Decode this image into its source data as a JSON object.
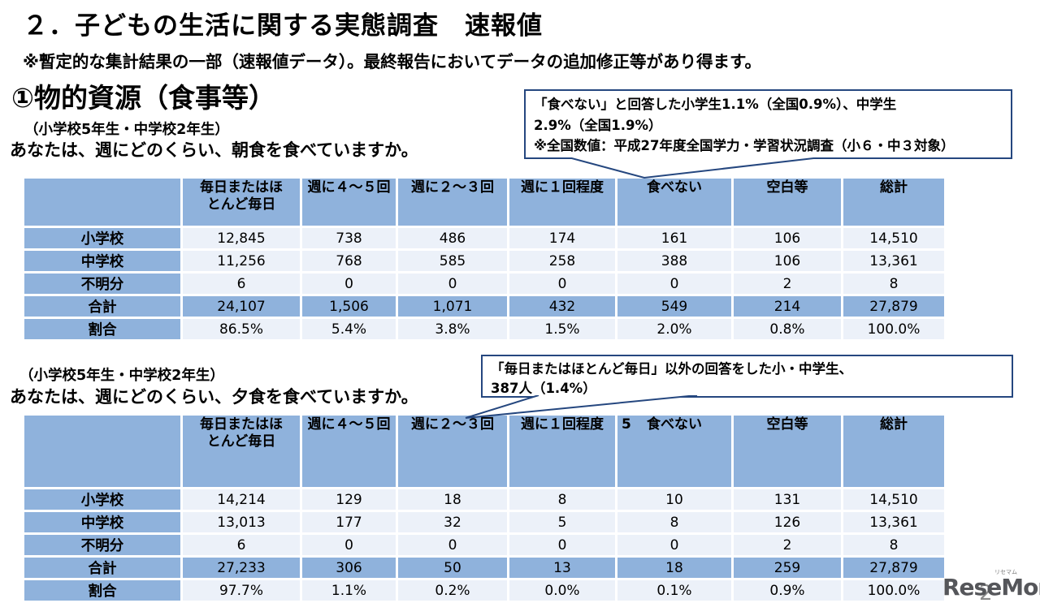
{
  "page": {
    "title": "２．子どもの生活に関する実態調査　速報値",
    "disclaimer": "※暫定的な集計結果の一部（速報値データ）。最終報告においてデータの追加修正等があり得ます。",
    "section_heading": "①物的資源（食事等）",
    "page_number": "2"
  },
  "logo": {
    "text": "ReseMom.",
    "ruby": "リセマム"
  },
  "colors": {
    "table_blue": "#8FB2DC",
    "table_light": "#ECF1F9",
    "callout_border": "#25477F"
  },
  "breakfast": {
    "grade_note": "（小学校5年生・中学校2年生）",
    "question": "あなたは、週にどのくらい、朝食を食べていますか。",
    "callout": {
      "line1": "「食べない」と回答した小学生1.1%（全国0.9%）、中学生",
      "line2": "2.9%（全国1.9%）",
      "line3": "※全国数値：平成27年度全国学力・学習状況調査（小６・中３対象）"
    }
  },
  "dinner": {
    "grade_note": "（小学校5年生・中学校2年生）",
    "question": "あなたは、週にどのくらい、夕食を食べていますか。",
    "callout": {
      "line1": "「毎日またはほとんど毎日」以外の回答をした小・中学生、",
      "line2": "387人（1.4%）"
    }
  },
  "chart_data": [
    {
      "type": "table",
      "name": "breakfast-frequency",
      "question": "あなたは、週にどのくらい、朝食を食べていますか。",
      "columns": [
        "毎日またはほ\nとんど毎日",
        "週に４～５回",
        "週に２～３回",
        "週に１回程度",
        "食べない",
        "空白等",
        "総計"
      ],
      "rows": [
        [
          "小学校",
          "12,845",
          "738",
          "486",
          "174",
          "161",
          "106",
          "14,510"
        ],
        [
          "中学校",
          "11,256",
          "768",
          "585",
          "258",
          "388",
          "106",
          "13,361"
        ],
        [
          "不明分",
          "6",
          "0",
          "0",
          "0",
          "0",
          "2",
          "8"
        ],
        [
          "合計",
          "24,107",
          "1,506",
          "1,071",
          "432",
          "549",
          "214",
          "27,879"
        ],
        [
          "割合",
          "86.5%",
          "5.4%",
          "3.8%",
          "1.5%",
          "2.0%",
          "0.8%",
          "100.0%"
        ]
      ],
      "row_styles": [
        "light",
        "light",
        "light",
        "blue",
        "light"
      ]
    },
    {
      "type": "table",
      "name": "dinner-frequency",
      "question": "あなたは、週にどのくらい、夕食を食べていますか。",
      "columns": [
        "毎日またはほ\nとんど毎日",
        "週に４～５回",
        "週に２～３回",
        "週に１回程度",
        "食べない",
        "空白等",
        "総計"
      ],
      "stray_label": {
        "text": "5",
        "col_index": 4
      },
      "rows": [
        [
          "小学校",
          "14,214",
          "129",
          "18",
          "8",
          "10",
          "131",
          "14,510"
        ],
        [
          "中学校",
          "13,013",
          "177",
          "32",
          "5",
          "8",
          "126",
          "13,361"
        ],
        [
          "不明分",
          "6",
          "0",
          "0",
          "0",
          "0",
          "2",
          "8"
        ],
        [
          "合計",
          "27,233",
          "306",
          "50",
          "13",
          "18",
          "259",
          "27,879"
        ],
        [
          "割合",
          "97.7%",
          "1.1%",
          "0.2%",
          "0.0%",
          "0.1%",
          "0.9%",
          "100.0%"
        ]
      ],
      "row_styles": [
        "light",
        "light",
        "light",
        "blue",
        "light"
      ]
    }
  ]
}
